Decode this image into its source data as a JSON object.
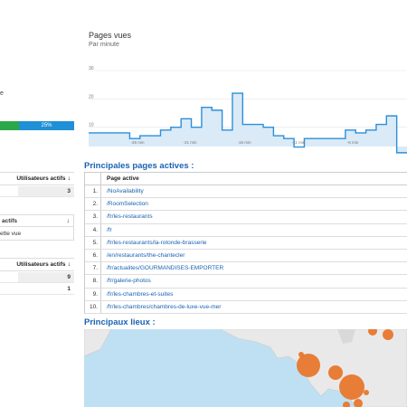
{
  "left": {
    "cut_label": "e",
    "progress": {
      "blue_label": "25%",
      "green_fraction": 0.25
    },
    "table1": {
      "header": "Utilisateurs actifs",
      "rows": [
        "3"
      ]
    },
    "table2": {
      "header": "actifs",
      "row": "ette vue"
    },
    "table3": {
      "header": "Utilisateurs actifs",
      "rows": [
        "9",
        "1"
      ]
    }
  },
  "chart": {
    "title": "Pages vues",
    "subtitle": "Par minute"
  },
  "chart_data": {
    "type": "line",
    "title": "Pages vues",
    "subtitle": "Par minute",
    "y_ticks": [
      "30",
      "20",
      "10"
    ],
    "x_ticks": [
      "-26 min",
      "-21 min",
      "-16 min",
      "-11 min",
      "-6 min"
    ],
    "ylim": [
      0,
      30
    ],
    "values": [
      8,
      8,
      8,
      8,
      6,
      7,
      7,
      9,
      10,
      13,
      10,
      17,
      16,
      9,
      22,
      11,
      11,
      10,
      7,
      6,
      3,
      6,
      6,
      6,
      6,
      9,
      8,
      9,
      11,
      14,
      1
    ]
  },
  "pages": {
    "title": "Principales pages actives :",
    "header": "Page active",
    "rows": [
      {
        "num": "1.",
        "path": "/NoAvailability"
      },
      {
        "num": "2.",
        "path": "/RoomSelection"
      },
      {
        "num": "3.",
        "path": "/fr/les-restaurants"
      },
      {
        "num": "4.",
        "path": "/fr"
      },
      {
        "num": "5.",
        "path": "/fr/les-restaurants/la-rotonde-brasserie"
      },
      {
        "num": "6.",
        "path": "/en/restaurants/the-chantecler"
      },
      {
        "num": "7.",
        "path": "/fr/actualites/GOURMANDISES-EMPORTER"
      },
      {
        "num": "8.",
        "path": "/fr/galerie-photos"
      },
      {
        "num": "9.",
        "path": "/fr/les-chambres-et-suites"
      },
      {
        "num": "10.",
        "path": "/fr/les-chambres/chambres-de-luxe-vue-mer"
      }
    ]
  },
  "map": {
    "title": "Principaux lieux :",
    "colors": {
      "water": "#bfe0f2",
      "land": "#e9e9e9",
      "bubble": "#e8772e"
    }
  }
}
